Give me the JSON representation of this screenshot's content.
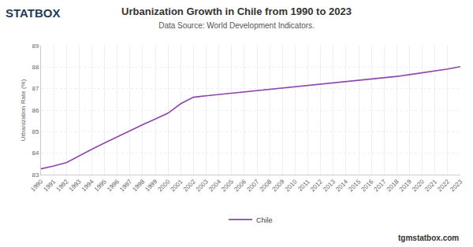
{
  "chart_data": {
    "type": "line",
    "title": "Urbanization Growth in Chile from 1990 to 2023",
    "subtitle": "Data Source: World Development Indicators.",
    "logo": "STATBOX",
    "footer": "tgmstatbox.com",
    "y_label": "Urbanization Rate (%)",
    "x": [
      1990,
      1991,
      1992,
      1993,
      1994,
      1995,
      1996,
      1997,
      1998,
      1999,
      2000,
      2001,
      2002,
      2003,
      2004,
      2005,
      2006,
      2007,
      2008,
      2009,
      2010,
      2011,
      2012,
      2013,
      2014,
      2015,
      2016,
      2017,
      2018,
      2019,
      2020,
      2021,
      2022,
      2023
    ],
    "series": [
      {
        "name": "Chile",
        "color": "#8e44ad",
        "values": [
          83.27,
          83.4,
          83.56,
          83.88,
          84.18,
          84.47,
          84.76,
          85.04,
          85.32,
          85.59,
          85.86,
          86.3,
          86.6,
          86.67,
          86.73,
          86.79,
          86.85,
          86.91,
          86.97,
          87.03,
          87.08,
          87.14,
          87.2,
          87.26,
          87.31,
          87.37,
          87.43,
          87.5,
          87.57,
          87.65,
          87.73,
          87.82,
          87.91,
          88.02
        ]
      }
    ],
    "xlim": [
      1990,
      2023
    ],
    "xticks": [
      1990,
      1991,
      1992,
      1993,
      1994,
      1995,
      1996,
      1997,
      1998,
      1999,
      2000,
      2001,
      2002,
      2003,
      2004,
      2005,
      2006,
      2007,
      2008,
      2009,
      2010,
      2011,
      2012,
      2013,
      2014,
      2015,
      2016,
      2017,
      2018,
      2019,
      2020,
      2021,
      2022,
      2023
    ],
    "ylim": [
      83,
      89
    ],
    "yticks": [
      83,
      84,
      85,
      86,
      87,
      88,
      89
    ],
    "grid": true,
    "legend": "bottom"
  }
}
